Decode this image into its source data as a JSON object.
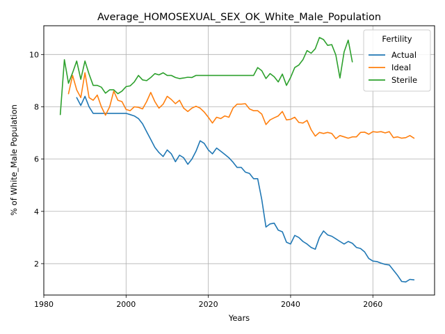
{
  "chart_data": {
    "type": "line",
    "title": "Average_HOMOSEXUAL_SEX_OK_White_Male_Population",
    "xlabel": "Years",
    "ylabel": "% of White_Male Population",
    "xlim": [
      1980,
      2075
    ],
    "ylim": [
      0.8,
      11.1
    ],
    "xticks": [
      1980,
      2000,
      2020,
      2040,
      2060
    ],
    "yticks": [
      2,
      4,
      6,
      8,
      10
    ],
    "grid": true,
    "legend": {
      "title": "Fertility",
      "placement": "top-right"
    },
    "series": [
      {
        "name": "Actual",
        "color": "#1f77b4",
        "points": [
          [
            1988,
            8.35
          ],
          [
            1989,
            8.05
          ],
          [
            1990,
            8.4
          ],
          [
            1991,
            8.0
          ],
          [
            1992,
            7.75
          ],
          [
            1993,
            7.75
          ],
          [
            1994,
            7.75
          ],
          [
            1995,
            7.75
          ],
          [
            1996,
            7.75
          ],
          [
            1997,
            7.75
          ],
          [
            1998,
            7.75
          ],
          [
            1999,
            7.75
          ],
          [
            2000,
            7.75
          ],
          [
            2001,
            7.7
          ],
          [
            2002,
            7.65
          ],
          [
            2003,
            7.55
          ],
          [
            2004,
            7.35
          ],
          [
            2005,
            7.05
          ],
          [
            2006,
            6.75
          ],
          [
            2007,
            6.45
          ],
          [
            2008,
            6.25
          ],
          [
            2009,
            6.1
          ],
          [
            2010,
            6.35
          ],
          [
            2011,
            6.2
          ],
          [
            2012,
            5.9
          ],
          [
            2013,
            6.15
          ],
          [
            2014,
            6.05
          ],
          [
            2015,
            5.8
          ],
          [
            2016,
            6.0
          ],
          [
            2017,
            6.3
          ],
          [
            2018,
            6.7
          ],
          [
            2019,
            6.6
          ],
          [
            2020,
            6.35
          ],
          [
            2021,
            6.2
          ],
          [
            2022,
            6.42
          ],
          [
            2023,
            6.3
          ],
          [
            2024,
            6.18
          ],
          [
            2025,
            6.05
          ],
          [
            2026,
            5.88
          ],
          [
            2027,
            5.68
          ],
          [
            2028,
            5.68
          ],
          [
            2029,
            5.5
          ],
          [
            2030,
            5.45
          ],
          [
            2031,
            5.25
          ],
          [
            2032,
            5.25
          ],
          [
            2033,
            4.45
          ],
          [
            2034,
            3.4
          ],
          [
            2035,
            3.52
          ],
          [
            2036,
            3.55
          ],
          [
            2037,
            3.28
          ],
          [
            2038,
            3.22
          ],
          [
            2039,
            2.82
          ],
          [
            2040,
            2.75
          ],
          [
            2041,
            3.08
          ],
          [
            2042,
            3.0
          ],
          [
            2043,
            2.85
          ],
          [
            2044,
            2.75
          ],
          [
            2045,
            2.62
          ],
          [
            2046,
            2.55
          ],
          [
            2047,
            3.0
          ],
          [
            2048,
            3.25
          ],
          [
            2049,
            3.1
          ],
          [
            2050,
            3.05
          ],
          [
            2051,
            2.95
          ],
          [
            2052,
            2.85
          ],
          [
            2053,
            2.75
          ],
          [
            2054,
            2.85
          ],
          [
            2055,
            2.78
          ],
          [
            2056,
            2.62
          ],
          [
            2057,
            2.58
          ],
          [
            2058,
            2.45
          ],
          [
            2059,
            2.2
          ],
          [
            2060,
            2.1
          ],
          [
            2061,
            2.08
          ],
          [
            2062,
            2.02
          ],
          [
            2063,
            1.97
          ],
          [
            2064,
            1.95
          ],
          [
            2065,
            1.75
          ],
          [
            2066,
            1.55
          ],
          [
            2067,
            1.32
          ],
          [
            2068,
            1.3
          ],
          [
            2069,
            1.4
          ],
          [
            2070,
            1.38
          ]
        ]
      },
      {
        "name": "Ideal",
        "color": "#ff7f0e",
        "points": [
          [
            1986,
            8.5
          ],
          [
            1987,
            9.2
          ],
          [
            1988,
            8.65
          ],
          [
            1989,
            8.35
          ],
          [
            1990,
            9.3
          ],
          [
            1991,
            8.35
          ],
          [
            1992,
            8.25
          ],
          [
            1993,
            8.45
          ],
          [
            1994,
            8.0
          ],
          [
            1995,
            7.68
          ],
          [
            1996,
            8.0
          ],
          [
            1997,
            8.6
          ],
          [
            1998,
            8.25
          ],
          [
            1999,
            8.2
          ],
          [
            2000,
            7.9
          ],
          [
            2001,
            7.85
          ],
          [
            2002,
            8.0
          ],
          [
            2003,
            7.98
          ],
          [
            2004,
            7.92
          ],
          [
            2005,
            8.2
          ],
          [
            2006,
            8.55
          ],
          [
            2007,
            8.2
          ],
          [
            2008,
            7.95
          ],
          [
            2009,
            8.1
          ],
          [
            2010,
            8.4
          ],
          [
            2011,
            8.28
          ],
          [
            2012,
            8.12
          ],
          [
            2013,
            8.25
          ],
          [
            2014,
            7.95
          ],
          [
            2015,
            7.82
          ],
          [
            2016,
            7.95
          ],
          [
            2017,
            8.02
          ],
          [
            2018,
            7.95
          ],
          [
            2019,
            7.8
          ],
          [
            2020,
            7.6
          ],
          [
            2021,
            7.38
          ],
          [
            2022,
            7.6
          ],
          [
            2023,
            7.55
          ],
          [
            2024,
            7.65
          ],
          [
            2025,
            7.6
          ],
          [
            2026,
            7.95
          ],
          [
            2027,
            8.1
          ],
          [
            2028,
            8.1
          ],
          [
            2029,
            8.12
          ],
          [
            2030,
            7.92
          ],
          [
            2031,
            7.85
          ],
          [
            2032,
            7.85
          ],
          [
            2033,
            7.72
          ],
          [
            2034,
            7.32
          ],
          [
            2035,
            7.5
          ],
          [
            2036,
            7.58
          ],
          [
            2037,
            7.65
          ],
          [
            2038,
            7.82
          ],
          [
            2039,
            7.5
          ],
          [
            2040,
            7.52
          ],
          [
            2041,
            7.6
          ],
          [
            2042,
            7.4
          ],
          [
            2043,
            7.38
          ],
          [
            2044,
            7.48
          ],
          [
            2045,
            7.12
          ],
          [
            2046,
            6.88
          ],
          [
            2047,
            7.02
          ],
          [
            2048,
            6.98
          ],
          [
            2049,
            7.02
          ],
          [
            2050,
            6.98
          ],
          [
            2051,
            6.78
          ],
          [
            2052,
            6.9
          ],
          [
            2053,
            6.85
          ],
          [
            2054,
            6.8
          ],
          [
            2055,
            6.85
          ],
          [
            2056,
            6.85
          ],
          [
            2057,
            7.02
          ],
          [
            2058,
            7.03
          ],
          [
            2059,
            6.95
          ],
          [
            2060,
            7.05
          ],
          [
            2061,
            7.03
          ],
          [
            2062,
            7.05
          ],
          [
            2063,
            7.0
          ],
          [
            2064,
            7.05
          ],
          [
            2065,
            6.82
          ],
          [
            2066,
            6.85
          ],
          [
            2067,
            6.8
          ],
          [
            2068,
            6.82
          ],
          [
            2069,
            6.9
          ],
          [
            2070,
            6.8
          ]
        ]
      },
      {
        "name": "Sterile",
        "color": "#2ca02c",
        "points": [
          [
            1984,
            7.7
          ],
          [
            1985,
            9.8
          ],
          [
            1986,
            8.9
          ],
          [
            1987,
            9.3
          ],
          [
            1988,
            9.75
          ],
          [
            1989,
            9.05
          ],
          [
            1990,
            9.75
          ],
          [
            1991,
            9.25
          ],
          [
            1992,
            8.82
          ],
          [
            1993,
            8.82
          ],
          [
            1994,
            8.75
          ],
          [
            1995,
            8.52
          ],
          [
            1996,
            8.65
          ],
          [
            1997,
            8.65
          ],
          [
            1998,
            8.5
          ],
          [
            1999,
            8.6
          ],
          [
            2000,
            8.77
          ],
          [
            2001,
            8.8
          ],
          [
            2002,
            8.95
          ],
          [
            2003,
            9.2
          ],
          [
            2004,
            9.03
          ],
          [
            2005,
            9.0
          ],
          [
            2006,
            9.12
          ],
          [
            2007,
            9.27
          ],
          [
            2008,
            9.22
          ],
          [
            2009,
            9.3
          ],
          [
            2010,
            9.2
          ],
          [
            2011,
            9.2
          ],
          [
            2012,
            9.12
          ],
          [
            2013,
            9.08
          ],
          [
            2014,
            9.1
          ],
          [
            2015,
            9.13
          ],
          [
            2016,
            9.12
          ],
          [
            2017,
            9.2
          ],
          [
            2018,
            9.2
          ],
          [
            2019,
            9.2
          ],
          [
            2020,
            9.2
          ],
          [
            2021,
            9.2
          ],
          [
            2022,
            9.2
          ],
          [
            2023,
            9.2
          ],
          [
            2024,
            9.2
          ],
          [
            2025,
            9.2
          ],
          [
            2026,
            9.2
          ],
          [
            2027,
            9.2
          ],
          [
            2028,
            9.2
          ],
          [
            2029,
            9.2
          ],
          [
            2030,
            9.2
          ],
          [
            2031,
            9.2
          ],
          [
            2032,
            9.5
          ],
          [
            2033,
            9.38
          ],
          [
            2034,
            9.08
          ],
          [
            2035,
            9.27
          ],
          [
            2036,
            9.15
          ],
          [
            2037,
            8.95
          ],
          [
            2038,
            9.25
          ],
          [
            2039,
            8.82
          ],
          [
            2040,
            9.12
          ],
          [
            2041,
            9.5
          ],
          [
            2042,
            9.6
          ],
          [
            2043,
            9.8
          ],
          [
            2044,
            10.15
          ],
          [
            2045,
            10.05
          ],
          [
            2046,
            10.22
          ],
          [
            2047,
            10.65
          ],
          [
            2048,
            10.57
          ],
          [
            2049,
            10.35
          ],
          [
            2050,
            10.38
          ],
          [
            2051,
            9.98
          ],
          [
            2052,
            9.1
          ],
          [
            2053,
            10.1
          ],
          [
            2054,
            10.55
          ],
          [
            2055,
            9.72
          ]
        ]
      }
    ]
  }
}
